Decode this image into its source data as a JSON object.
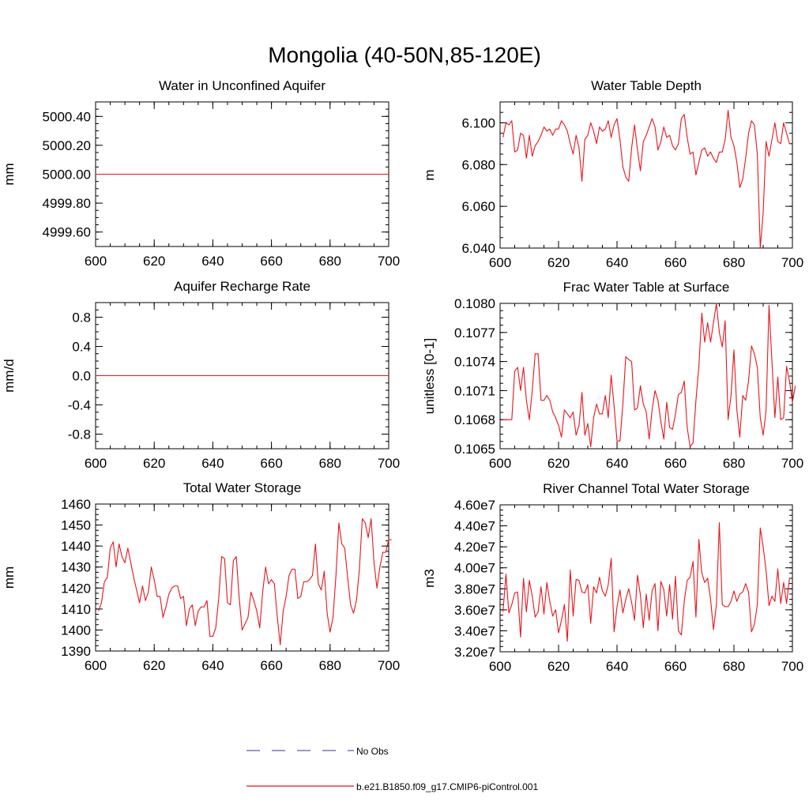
{
  "title": "Mongolia (40-50N,85-120E)",
  "legend": {
    "entries": [
      {
        "label": "No Obs",
        "style": "dashed",
        "color": "#5a5ab4"
      },
      {
        "label": "b.e21.B1850.f09_g17.CMIP6-piControl.001",
        "style": "solid",
        "color": "#e8141c"
      }
    ]
  },
  "series_color": "#e8141c",
  "chart_data": [
    {
      "id": "aquifer",
      "type": "line",
      "title": "Water in Unconfined Aquifer",
      "xlabel": "",
      "ylabel": "mm",
      "xlim": [
        600,
        700
      ],
      "ylim": [
        4999.5,
        5000.5
      ],
      "xticks": [
        600,
        620,
        640,
        660,
        680,
        700
      ],
      "xticklabels": [
        "600",
        "620",
        "640",
        "660",
        "680",
        "700"
      ],
      "yticks": [
        4999.6,
        4999.8,
        5000.0,
        5000.2,
        5000.4
      ],
      "yticklabels": [
        "4999.60",
        "4999.80",
        "5000.00",
        "5000.20",
        "5000.40"
      ],
      "x_start": 600,
      "x_step": 1,
      "values": [
        5000,
        5000
      ]
    },
    {
      "id": "wtd",
      "type": "line",
      "title": "Water Table Depth",
      "xlabel": "",
      "ylabel": "m",
      "xlim": [
        600,
        700
      ],
      "ylim": [
        6.04,
        6.11
      ],
      "xticks": [
        600,
        620,
        640,
        660,
        680,
        700
      ],
      "xticklabels": [
        "600",
        "620",
        "640",
        "660",
        "680",
        "700"
      ],
      "yticks": [
        6.04,
        6.06,
        6.08,
        6.1
      ],
      "yticklabels": [
        "6.040",
        "6.060",
        "6.080",
        "6.100"
      ],
      "x_start": 601,
      "x_step": 1,
      "values": [
        6.093,
        6.1,
        6.099,
        6.101,
        6.086,
        6.087,
        6.095,
        6.094,
        6.083,
        6.094,
        6.084,
        6.089,
        6.091,
        6.094,
        6.098,
        6.096,
        6.097,
        6.094,
        6.097,
        6.097,
        6.101,
        6.099,
        6.096,
        6.09,
        6.085,
        6.094,
        6.088,
        6.072,
        6.092,
        6.094,
        6.1,
        6.096,
        6.09,
        6.098,
        6.096,
        6.097,
        6.101,
        6.093,
        6.099,
        6.102,
        6.092,
        6.079,
        6.074,
        6.072,
        6.088,
        6.099,
        6.087,
        6.077,
        6.091,
        6.094,
        6.098,
        6.102,
        6.098,
        6.087,
        6.091,
        6.098,
        6.093,
        6.094,
        6.089,
        6.087,
        6.09,
        6.102,
        6.104,
        6.093,
        6.085,
        6.086,
        6.075,
        6.081,
        6.087,
        6.088,
        6.084,
        6.086,
        6.083,
        6.081,
        6.086,
        6.086,
        6.092,
        6.106,
        6.093,
        6.089,
        6.081,
        6.069,
        6.073,
        6.083,
        6.095,
        6.101,
        6.099,
        6.085,
        6.04,
        6.057,
        6.091,
        6.084,
        6.092,
        6.1,
        6.091,
        6.09,
        6.1,
        6.095,
        6.09
      ]
    },
    {
      "id": "recharge",
      "type": "line",
      "title": "Aquifer Recharge Rate",
      "xlabel": "",
      "ylabel": "mm/d",
      "xlim": [
        600,
        700
      ],
      "ylim": [
        -1,
        1
      ],
      "xticks": [
        600,
        620,
        640,
        660,
        680,
        700
      ],
      "xticklabels": [
        "600",
        "620",
        "640",
        "660",
        "680",
        "700"
      ],
      "yticks": [
        -0.8,
        -0.4,
        0,
        0.4,
        0.8
      ],
      "yticklabels": [
        "-0.8",
        "-0.4",
        "0.0",
        "0.4",
        "0.8"
      ],
      "x_start": 600,
      "x_step": 1,
      "values": [
        0,
        0
      ]
    },
    {
      "id": "frac",
      "type": "line",
      "title": "Frac Water Table at Surface",
      "xlabel": "",
      "ylabel": "unitless [0-1]",
      "xlim": [
        600,
        700
      ],
      "ylim": [
        0.1065,
        0.108
      ],
      "xticks": [
        600,
        620,
        640,
        660,
        680,
        700
      ],
      "xticklabels": [
        "600",
        "620",
        "640",
        "660",
        "680",
        "700"
      ],
      "yticks": [
        0.1065,
        0.1068,
        0.1071,
        0.1074,
        0.1077,
        0.108
      ],
      "yticklabels": [
        "0.1065",
        "0.1068",
        "0.1071",
        "0.1074",
        "0.1077",
        "0.1080"
      ],
      "x_start": 601,
      "x_step": 1,
      "values": [
        0.1068,
        0.1068,
        0.1068,
        0.1068,
        0.1073,
        0.10734,
        0.1071,
        0.10734,
        0.107,
        0.1068,
        0.1071,
        0.10748,
        0.10748,
        0.107,
        0.107,
        0.10705,
        0.107,
        0.10688,
        0.10682,
        0.10674,
        0.10662,
        0.1069,
        0.10686,
        0.10682,
        0.10688,
        0.10664,
        0.10674,
        0.10708,
        0.10664,
        0.10676,
        0.10652,
        0.10682,
        0.10696,
        0.10686,
        0.10686,
        0.10705,
        0.10682,
        0.10726,
        0.10694,
        0.10658,
        0.10658,
        0.10696,
        0.10745,
        0.10742,
        0.1074,
        0.1069,
        0.10692,
        0.10715,
        0.10696,
        0.10688,
        0.1066,
        0.1069,
        0.1071,
        0.107,
        0.10678,
        0.1066,
        0.10698,
        0.10672,
        0.1067,
        0.10686,
        0.10706,
        0.10708,
        0.1072,
        0.10672,
        0.10652,
        0.10656,
        0.107,
        0.10735,
        0.1079,
        0.1076,
        0.1078,
        0.1076,
        0.1078,
        0.108,
        0.1077,
        0.10755,
        0.10782,
        0.1068,
        0.10705,
        0.10752,
        0.1069,
        0.10662,
        0.10705,
        0.107,
        0.1072,
        0.10756,
        0.10748,
        0.10734,
        0.10682,
        0.10664,
        0.1069,
        0.10798,
        0.1074,
        0.10682,
        0.10724,
        0.1068,
        0.10682,
        0.10735,
        0.1072,
        0.10698,
        0.10715
      ]
    },
    {
      "id": "tws",
      "type": "line",
      "title": "Total Water Storage",
      "xlabel": "",
      "ylabel": "mm",
      "xlim": [
        600,
        700
      ],
      "ylim": [
        1390,
        1460
      ],
      "xticks": [
        600,
        620,
        640,
        660,
        680,
        700
      ],
      "xticklabels": [
        "600",
        "620",
        "640",
        "660",
        "680",
        "700"
      ],
      "yticks": [
        1390,
        1400,
        1410,
        1420,
        1430,
        1440,
        1450,
        1460
      ],
      "yticklabels": [
        "1390",
        "1400",
        "1410",
        "1420",
        "1430",
        "1440",
        "1450",
        "1460"
      ],
      "x_start": 601,
      "x_step": 1,
      "values": [
        1409,
        1413,
        1423,
        1425,
        1439,
        1442,
        1430,
        1441,
        1435,
        1432,
        1439,
        1432,
        1425,
        1419,
        1413,
        1421,
        1414,
        1418,
        1430,
        1424,
        1416,
        1416,
        1406,
        1411,
        1417,
        1420,
        1421,
        1421,
        1415,
        1416,
        1402,
        1410,
        1412,
        1402,
        1409,
        1411,
        1411,
        1414,
        1397,
        1397,
        1401,
        1415,
        1435,
        1434,
        1413,
        1412,
        1433,
        1435,
        1415,
        1400,
        1403,
        1406,
        1418,
        1414,
        1409,
        1401,
        1418,
        1430,
        1422,
        1424,
        1422,
        1406,
        1393,
        1409,
        1416,
        1426,
        1429,
        1429,
        1415,
        1416,
        1423,
        1423,
        1424,
        1426,
        1441,
        1422,
        1419,
        1428,
        1408,
        1399,
        1406,
        1426,
        1451,
        1441,
        1439,
        1425,
        1412,
        1408,
        1414,
        1429,
        1453,
        1451,
        1444,
        1453,
        1432,
        1420,
        1430,
        1437,
        1437,
        1443,
        1443
      ]
    },
    {
      "id": "river",
      "type": "line",
      "title": "River Channel Total Water Storage",
      "xlabel": "",
      "ylabel": "m3",
      "xlim": [
        600,
        700
      ],
      "ylim": [
        32000000,
        46000000
      ],
      "xticks": [
        600,
        620,
        640,
        660,
        680,
        700
      ],
      "xticklabels": [
        "600",
        "620",
        "640",
        "660",
        "680",
        "700"
      ],
      "yticks": [
        32000000,
        34000000,
        36000000,
        38000000,
        40000000,
        42000000,
        44000000,
        46000000
      ],
      "yticklabels": [
        "3.20e7",
        "3.40e7",
        "3.60e7",
        "3.80e7",
        "4.00e7",
        "4.20e7",
        "4.40e7",
        "4.60e7"
      ],
      "x_start": 601,
      "x_step": 1,
      "values": [
        35800000,
        39400000,
        35700000,
        36500000,
        37600000,
        37700000,
        33400000,
        39000000,
        35800000,
        38800000,
        37300000,
        35300000,
        35800000,
        38200000,
        35600000,
        38600000,
        36800000,
        35400000,
        36000000,
        33800000,
        35000000,
        36500000,
        33000000,
        39800000,
        35400000,
        38900000,
        38800000,
        37700000,
        37600000,
        38400000,
        34700000,
        38200000,
        37600000,
        39100000,
        37800000,
        37300000,
        38400000,
        40900000,
        33900000,
        36300000,
        37900000,
        35700000,
        37000000,
        38000000,
        36700000,
        35000000,
        39300000,
        37400000,
        34300000,
        37500000,
        35000000,
        37800000,
        38500000,
        34000000,
        38700000,
        37900000,
        35400000,
        38400000,
        35100000,
        39200000,
        34000000,
        33600000,
        36800000,
        38800000,
        39100000,
        40600000,
        35300000,
        42700000,
        39500000,
        38600000,
        39000000,
        37000000,
        34100000,
        36500000,
        44300000,
        36500000,
        36300000,
        36300000,
        36800000,
        37800000,
        36800000,
        37500000,
        37700000,
        38500000,
        37700000,
        33900000,
        34600000,
        36500000,
        43800000,
        42000000,
        39700000,
        36400000,
        37300000,
        36800000,
        39900000,
        36600000,
        38600000,
        36600000,
        39000000
      ]
    }
  ]
}
